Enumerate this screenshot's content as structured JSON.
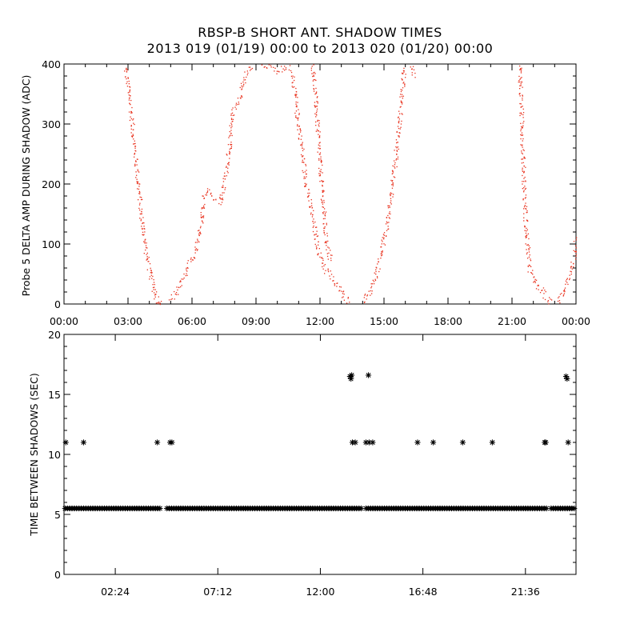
{
  "header": {
    "title": "RBSP-B SHORT ANT. SHADOW TIMES",
    "subtitle": "2013 019 (01/19) 00:00 to 2013 020 (01/20) 00:00"
  },
  "chart_data": [
    {
      "type": "scatter",
      "ylabel": "Probe 5 DELTA AMP DURING SHADOW (ADC)",
      "xlim": [
        0,
        24
      ],
      "ylim": [
        0,
        400
      ],
      "x_unit": "hours",
      "xticks": [
        0,
        3,
        6,
        9,
        12,
        15,
        18,
        21,
        24
      ],
      "xtick_labels": [
        "00:00",
        "03:00",
        "06:00",
        "09:00",
        "12:00",
        "15:00",
        "18:00",
        "21:00",
        "00:00"
      ],
      "yticks": [
        0,
        100,
        200,
        300,
        400
      ],
      "ytick_labels": [
        "0",
        "100",
        "200",
        "300",
        "400"
      ],
      "series": [
        {
          "color": "#e8301c",
          "curves": [
            [
              [
                2.85,
                400
              ],
              [
                3.1,
                330
              ],
              [
                3.35,
                240
              ],
              [
                3.6,
                150
              ],
              [
                3.85,
                85
              ],
              [
                4.1,
                38
              ],
              [
                4.35,
                8
              ],
              [
                4.55,
                3
              ]
            ],
            [
              [
                4.3,
                5
              ],
              [
                4.6,
                3
              ]
            ],
            [
              [
                5.0,
                5
              ],
              [
                5.25,
                20
              ],
              [
                5.5,
                40
              ],
              [
                5.75,
                60
              ],
              [
                6.05,
                80
              ],
              [
                6.3,
                110
              ],
              [
                6.45,
                140
              ],
              [
                6.5,
                175
              ],
              [
                6.75,
                190
              ],
              [
                7.1,
                175
              ],
              [
                7.3,
                170
              ],
              [
                7.6,
                225
              ],
              [
                7.8,
                280
              ],
              [
                7.9,
                320
              ],
              [
                8.2,
                340
              ],
              [
                8.5,
                380
              ],
              [
                8.8,
                400
              ]
            ],
            [
              [
                9.3,
                400
              ],
              [
                9.6,
                395
              ],
              [
                9.9,
                390
              ],
              [
                10.3,
                392
              ],
              [
                10.6,
                398
              ]
            ],
            [
              [
                10.7,
                385
              ],
              [
                10.9,
                320
              ],
              [
                11.1,
                270
              ],
              [
                11.3,
                210
              ],
              [
                11.5,
                170
              ],
              [
                11.7,
                130
              ],
              [
                11.9,
                90
              ],
              [
                12.2,
                60
              ],
              [
                12.6,
                40
              ],
              [
                12.9,
                25
              ],
              [
                13.2,
                10
              ],
              [
                13.4,
                3
              ]
            ],
            [
              [
                11.65,
                400
              ],
              [
                11.8,
                330
              ],
              [
                11.95,
                250
              ],
              [
                12.1,
                180
              ],
              [
                12.25,
                110
              ],
              [
                12.5,
                70
              ]
            ],
            [
              [
                14.0,
                4
              ],
              [
                14.3,
                20
              ],
              [
                14.6,
                50
              ],
              [
                14.85,
                85
              ],
              [
                15.1,
                130
              ],
              [
                15.35,
                190
              ],
              [
                15.55,
                250
              ],
              [
                15.75,
                320
              ],
              [
                15.9,
                380
              ],
              [
                16.0,
                400
              ]
            ],
            [
              [
                16.3,
                400
              ],
              [
                16.4,
                380
              ]
            ],
            [
              [
                21.35,
                400
              ],
              [
                21.45,
                300
              ],
              [
                21.55,
                200
              ],
              [
                21.65,
                120
              ],
              [
                21.8,
                60
              ],
              [
                22.1,
                35
              ],
              [
                22.4,
                20
              ],
              [
                22.7,
                8
              ],
              [
                22.9,
                3
              ]
            ],
            [
              [
                23.0,
                4
              ],
              [
                23.2,
                10
              ],
              [
                23.45,
                25
              ],
              [
                23.7,
                50
              ],
              [
                23.9,
                80
              ],
              [
                24.0,
                120
              ]
            ]
          ]
        }
      ]
    },
    {
      "type": "scatter",
      "ylabel": "TIME BETWEEN SHADOWS (SEC)",
      "xlim": [
        0,
        1438
      ],
      "ylim": [
        0,
        20
      ],
      "x_unit": "minutes",
      "xticks": [
        144,
        432,
        720,
        1008,
        1296
      ],
      "xtick_labels": [
        "02:24",
        "07:12",
        "12:00",
        "16:48",
        "21:36"
      ],
      "yticks": [
        0,
        5,
        10,
        15,
        20
      ],
      "ytick_labels": [
        "0",
        "5",
        "10",
        "15",
        "20"
      ],
      "marker": "asterisk",
      "series": [
        {
          "color": "#000000",
          "baseline": {
            "y": 5.5,
            "x_start": 0,
            "x_end": 1438,
            "step": 6.5,
            "gaps": [
              [
                272,
                287
              ],
              [
                839,
                843
              ],
              [
                1357,
                1365
              ]
            ]
          },
          "points": [
            [
              5,
              11
            ],
            [
              55,
              11
            ],
            [
              262,
              11
            ],
            [
              298,
              11
            ],
            [
              303,
              11
            ],
            [
              803,
              16.5
            ],
            [
              806,
              16.3
            ],
            [
              808,
              16.6
            ],
            [
              810,
              11
            ],
            [
              818,
              11
            ],
            [
              855,
              16.6
            ],
            [
              848,
              11
            ],
            [
              857,
              11
            ],
            [
              867,
              11
            ],
            [
              993,
              11
            ],
            [
              1037,
              11
            ],
            [
              1120,
              11
            ],
            [
              1203,
              11
            ],
            [
              1350,
              11
            ],
            [
              1353,
              11
            ],
            [
              1410,
              16.5
            ],
            [
              1413,
              16.3
            ],
            [
              1416,
              11
            ]
          ]
        }
      ]
    }
  ]
}
